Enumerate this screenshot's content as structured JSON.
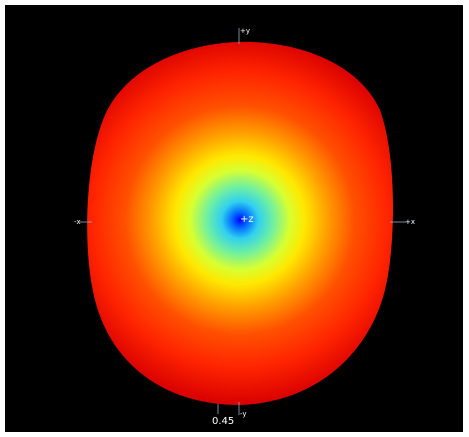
{
  "axes": {
    "top": "+y",
    "left": "-x",
    "right": "+x",
    "bottom": "-y",
    "center": "+z"
  },
  "scale_label": "0.45"
}
